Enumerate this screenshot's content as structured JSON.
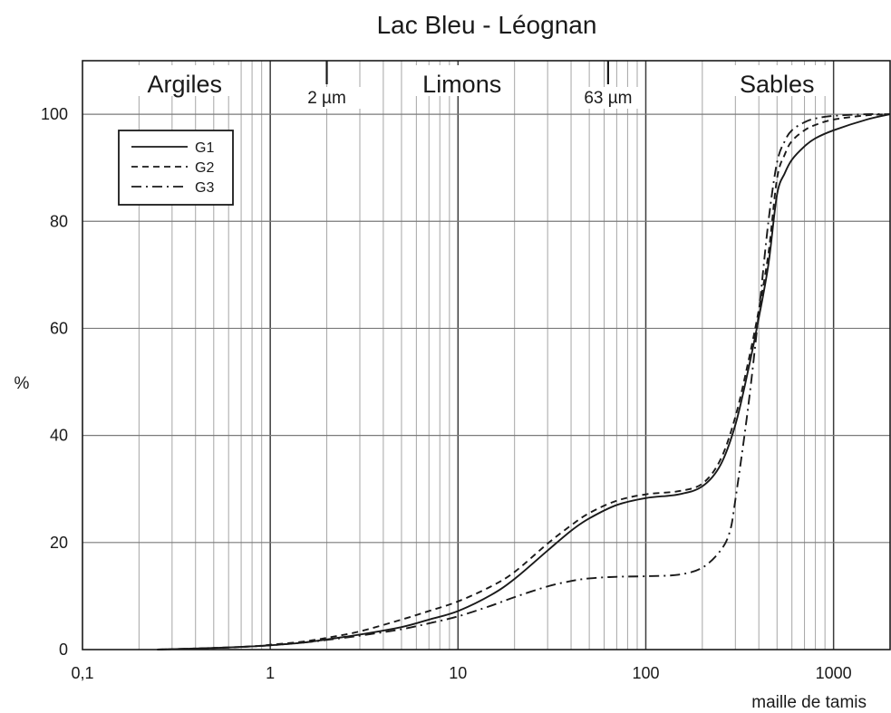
{
  "chart_data": {
    "type": "line",
    "title": "Lac Bleu - Léognan",
    "xlabel": "maille de tamis",
    "ylabel": "%",
    "x_scale": "log",
    "xlim": [
      0.1,
      2000
    ],
    "ylim": [
      0,
      110
    ],
    "grid": true,
    "x_ticks": [
      {
        "value": 0.1,
        "label": "0,1"
      },
      {
        "value": 1,
        "label": "1"
      },
      {
        "value": 10,
        "label": "10"
      },
      {
        "value": 100,
        "label": "100"
      },
      {
        "value": 1000,
        "label": "1000"
      }
    ],
    "y_ticks": [
      {
        "value": 0,
        "label": "0"
      },
      {
        "value": 20,
        "label": "20"
      },
      {
        "value": 40,
        "label": "40"
      },
      {
        "value": 60,
        "label": "60"
      },
      {
        "value": 80,
        "label": "80"
      },
      {
        "value": 100,
        "label": "100"
      }
    ],
    "zones": [
      {
        "label": "Argiles",
        "x": 0.35
      },
      {
        "label": "Limons",
        "x": 10.5
      },
      {
        "label": "Sables",
        "x": 500
      }
    ],
    "markers": [
      {
        "value": 2,
        "label": "2 µm"
      },
      {
        "value": 63,
        "label": "63 µm"
      }
    ],
    "legend_position": "top-left",
    "series": [
      {
        "name": "G1",
        "style": "solid",
        "x": [
          0.25,
          0.4,
          0.6,
          0.8,
          1,
          1.5,
          2,
          3,
          5,
          7,
          10,
          15,
          20,
          30,
          40,
          50,
          70,
          100,
          150,
          200,
          250,
          300,
          350,
          400,
          450,
          500,
          550,
          600,
          700,
          800,
          1000,
          1500,
          2000
        ],
        "y": [
          0,
          0.2,
          0.4,
          0.6,
          0.8,
          1.3,
          1.9,
          2.8,
          4.2,
          5.6,
          7.2,
          10.2,
          13.2,
          18.5,
          22.2,
          24.5,
          27,
          28.3,
          29,
          30.5,
          34.5,
          42,
          52,
          62,
          72,
          85,
          89,
          91.5,
          94,
          95.5,
          97,
          99,
          100
        ]
      },
      {
        "name": "G2",
        "style": "dashed",
        "x": [
          0.25,
          0.4,
          0.6,
          0.8,
          1,
          1.5,
          2,
          3,
          5,
          7,
          10,
          15,
          20,
          30,
          40,
          50,
          70,
          100,
          150,
          200,
          250,
          300,
          350,
          400,
          450,
          500,
          550,
          600,
          700,
          800,
          1000,
          1500,
          2000
        ],
        "y": [
          0,
          0.2,
          0.4,
          0.6,
          0.9,
          1.5,
          2.2,
          3.4,
          5.6,
          7.2,
          9,
          11.8,
          14.5,
          19.8,
          23.2,
          25.5,
          27.8,
          29,
          29.6,
          31,
          35.5,
          43.5,
          53.5,
          63.5,
          74,
          88,
          92.5,
          95,
          97,
          98,
          99,
          99.8,
          100
        ]
      },
      {
        "name": "G3",
        "style": "dashdot",
        "x": [
          0.25,
          0.4,
          0.6,
          0.8,
          1,
          1.5,
          2,
          3,
          5,
          7,
          10,
          15,
          20,
          30,
          40,
          50,
          70,
          100,
          150,
          200,
          250,
          280,
          300,
          350,
          400,
          450,
          500,
          550,
          600,
          700,
          800,
          1000,
          1500,
          2000
        ],
        "y": [
          0,
          0.2,
          0.4,
          0.6,
          0.8,
          1.3,
          1.8,
          2.6,
          3.8,
          4.9,
          6.2,
          8.2,
          9.8,
          11.8,
          12.8,
          13.3,
          13.6,
          13.7,
          14,
          15.3,
          18.5,
          22,
          28,
          45,
          63,
          80,
          91,
          95,
          97,
          98.5,
          99.2,
          99.7,
          100,
          100
        ]
      }
    ]
  }
}
